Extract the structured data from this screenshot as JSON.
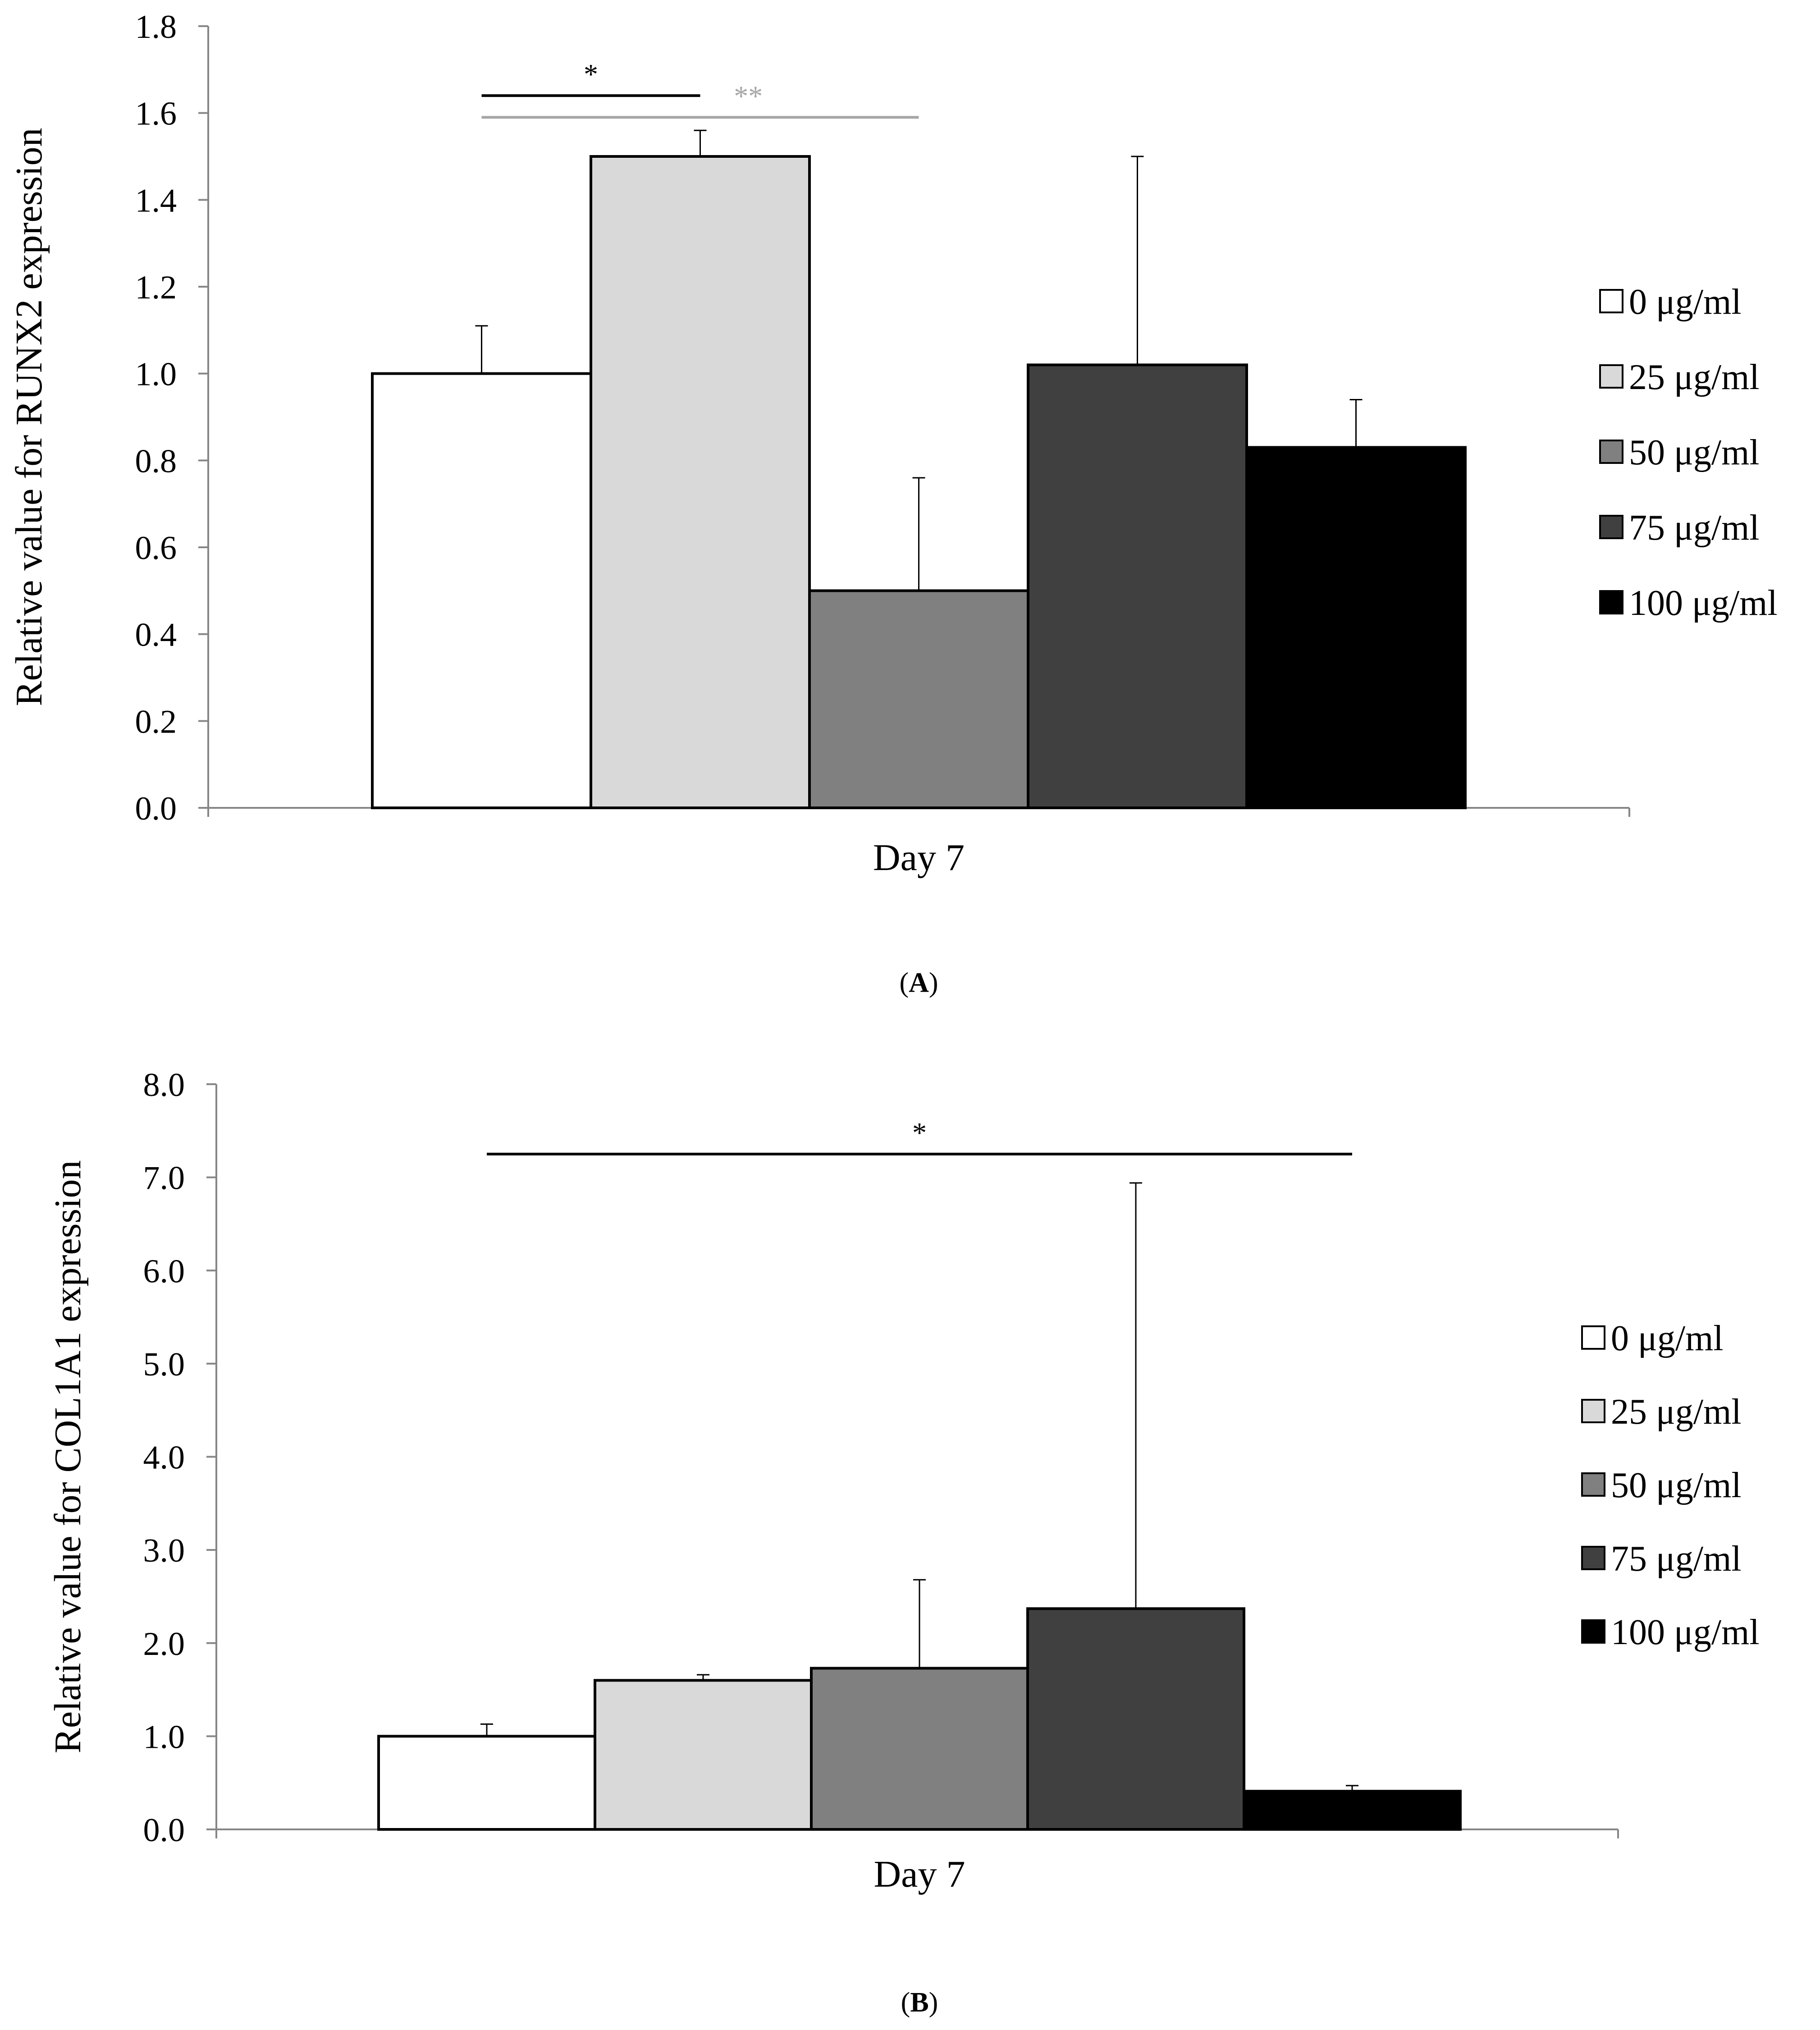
{
  "chart_data": [
    {
      "type": "bar",
      "panel_label": "A",
      "ylabel": "Relative value for RUNX2 expression",
      "xlabel": "",
      "categories": [
        "Day 7"
      ],
      "ylim": [
        0,
        1.8
      ],
      "yticks": [
        "0.0",
        "0.2",
        "0.4",
        "0.6",
        "0.8",
        "1.0",
        "1.2",
        "1.4",
        "1.6",
        "1.8"
      ],
      "grid": false,
      "legend_position": "right",
      "series": [
        {
          "name": "0 μg/ml",
          "values": [
            1.0
          ],
          "error": [
            0.11
          ],
          "color": "#ffffff"
        },
        {
          "name": "25 μg/ml",
          "values": [
            1.5
          ],
          "error": [
            0.06
          ],
          "color": "#d9d9d9"
        },
        {
          "name": "50 μg/ml",
          "values": [
            0.5
          ],
          "error": [
            0.26
          ],
          "color": "#808080"
        },
        {
          "name": "75 μg/ml",
          "values": [
            1.02
          ],
          "error": [
            0.48
          ],
          "color": "#404040"
        },
        {
          "name": "100 μg/ml",
          "values": [
            0.83
          ],
          "error": [
            0.11
          ],
          "color": "#000000"
        }
      ],
      "significance": [
        {
          "from": "0 μg/ml",
          "to": "25 μg/ml",
          "label": "*",
          "color": "#000000",
          "level": 1.64
        },
        {
          "from": "0 μg/ml",
          "to": "50 μg/ml",
          "label": "**",
          "color": "#a6a6a6",
          "level": 1.59
        }
      ]
    },
    {
      "type": "bar",
      "panel_label": "B",
      "ylabel": "Relative value for COL1A1 expression",
      "xlabel": "",
      "categories": [
        "Day 7"
      ],
      "ylim": [
        0,
        8
      ],
      "yticks": [
        "0.0",
        "1.0",
        "2.0",
        "3.0",
        "4.0",
        "5.0",
        "6.0",
        "7.0",
        "8.0"
      ],
      "grid": false,
      "legend_position": "right",
      "series": [
        {
          "name": "0 μg/ml",
          "values": [
            1.0
          ],
          "error": [
            0.13
          ],
          "color": "#ffffff"
        },
        {
          "name": "25 μg/ml",
          "values": [
            1.6
          ],
          "error": [
            0.06
          ],
          "color": "#d9d9d9"
        },
        {
          "name": "50 μg/ml",
          "values": [
            1.73
          ],
          "error": [
            0.95
          ],
          "color": "#808080"
        },
        {
          "name": "75 μg/ml",
          "values": [
            2.37
          ],
          "error": [
            4.57
          ],
          "color": "#404040"
        },
        {
          "name": "100 μg/ml",
          "values": [
            0.41
          ],
          "error": [
            0.06
          ],
          "color": "#000000"
        }
      ],
      "significance": [
        {
          "from": "0 μg/ml",
          "to": "100 μg/ml",
          "label": "*",
          "color": "#000000",
          "level": 7.25
        }
      ]
    }
  ]
}
